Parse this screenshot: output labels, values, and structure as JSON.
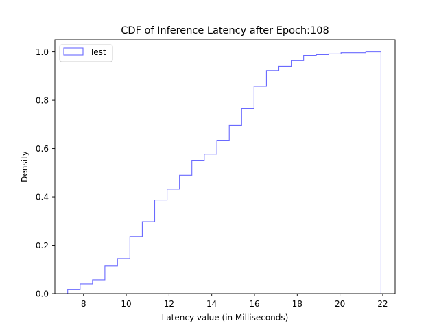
{
  "chart_data": {
    "type": "step",
    "histtype": "step",
    "cumulative": true,
    "title": "CDF of Inference Latency after Epoch:108",
    "xlabel": "Latency value (in Milliseconds)",
    "ylabel": "Density",
    "xlim": [
      6.66,
      22.58
    ],
    "ylim": [
      0.0,
      1.05
    ],
    "xticks": [
      8,
      10,
      12,
      14,
      16,
      18,
      20,
      22
    ],
    "yticks": [
      0.0,
      0.2,
      0.4,
      0.6,
      0.8,
      1.0
    ],
    "xtick_labels": [
      "8",
      "10",
      "12",
      "14",
      "16",
      "18",
      "20",
      "22"
    ],
    "ytick_labels": [
      "0.0",
      "0.2",
      "0.4",
      "0.6",
      "0.8",
      "1.0"
    ],
    "grid": false,
    "legend": {
      "position": "upper left"
    },
    "series": [
      {
        "name": "Test",
        "color": "#6a6aff",
        "bin_edges": [
          7.26,
          7.84,
          8.42,
          9.0,
          9.59,
          10.17,
          10.75,
          11.33,
          11.91,
          12.49,
          13.07,
          13.65,
          14.24,
          14.82,
          15.4,
          15.98,
          16.56,
          17.14,
          17.72,
          18.3,
          18.89,
          19.47,
          20.05,
          20.63,
          21.21,
          21.92
        ],
        "cumulative_values": [
          0.016,
          0.04,
          0.057,
          0.114,
          0.145,
          0.236,
          0.298,
          0.387,
          0.432,
          0.49,
          0.552,
          0.577,
          0.634,
          0.697,
          0.765,
          0.857,
          0.923,
          0.941,
          0.964,
          0.986,
          0.989,
          0.992,
          0.997,
          0.997,
          1.0
        ]
      }
    ]
  }
}
